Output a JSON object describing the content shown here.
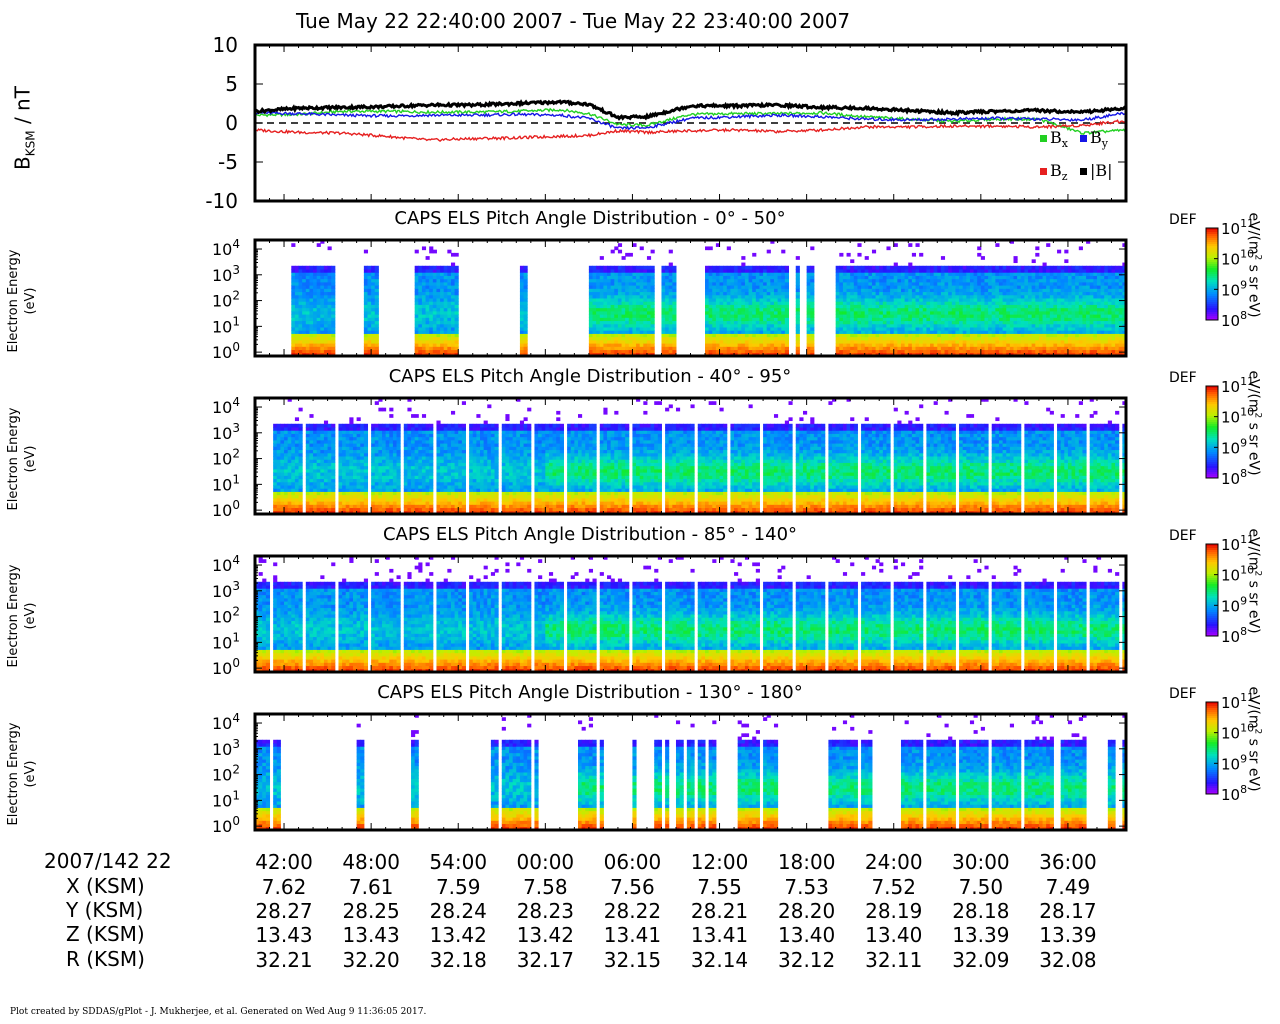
{
  "header": {
    "time_range": "Tue May 22 22:40:00 2007 - Tue May 22 23:40:00 2007"
  },
  "chart_data": [
    {
      "type": "line",
      "ylabel": "B",
      "ylabel_sub": "KSM",
      "ylabel_unit": " / nT",
      "ylim": [
        -10,
        10
      ],
      "yticks": [
        "10",
        "5",
        "0",
        "-5",
        "-10"
      ],
      "xlim_minutes": [
        0,
        60
      ],
      "zero_line": "dashed",
      "legend": {
        "placement": "bottom-right",
        "items": [
          {
            "label": "B",
            "sub": "x",
            "color": "#22d022"
          },
          {
            "label": "B",
            "sub": "y",
            "color": "#1515e6"
          },
          {
            "label": "B",
            "sub": "z",
            "color": "#e62020"
          },
          {
            "label": "|B|",
            "sub": "",
            "color": "#000000"
          }
        ]
      },
      "x": [
        0,
        3,
        6,
        9,
        12,
        15,
        18,
        21,
        23,
        25,
        27,
        30,
        33,
        36,
        39,
        42,
        45,
        48,
        51,
        54,
        57,
        60
      ],
      "series": [
        {
          "name": "Bx",
          "color": "#22d022",
          "values": [
            1.0,
            1.1,
            1.5,
            1.5,
            1.4,
            1.4,
            1.5,
            1.7,
            1.2,
            -0.2,
            -0.3,
            1.1,
            1.2,
            1.2,
            1.3,
            0.8,
            0.5,
            0.2,
            0.5,
            0.5,
            -1.3,
            -0.9
          ]
        },
        {
          "name": "By",
          "color": "#1515e6",
          "values": [
            1.3,
            1.2,
            1.0,
            0.9,
            1.0,
            1.0,
            1.1,
            1.0,
            0.6,
            -0.7,
            -0.6,
            0.6,
            0.8,
            1.0,
            0.8,
            0.5,
            0.4,
            0.5,
            0.6,
            0.5,
            0.4,
            1.3
          ]
        },
        {
          "name": "Bz",
          "color": "#e62020",
          "values": [
            -0.9,
            -1.2,
            -1.3,
            -1.7,
            -2.2,
            -2.0,
            -1.9,
            -1.7,
            -1.6,
            -1.0,
            -1.2,
            -1.0,
            -0.9,
            -1.1,
            -0.9,
            -0.5,
            -0.5,
            -0.4,
            -0.4,
            -0.5,
            -0.3,
            0.3
          ]
        },
        {
          "name": "|B|",
          "color": "#000000",
          "values": [
            1.5,
            1.9,
            2.0,
            2.1,
            2.3,
            2.3,
            2.5,
            2.7,
            2.4,
            0.7,
            0.8,
            2.2,
            2.2,
            2.3,
            2.0,
            1.9,
            1.6,
            1.3,
            1.5,
            1.6,
            1.4,
            1.9
          ]
        }
      ]
    },
    {
      "type": "heatmap",
      "title": "CAPS ELS Pitch Angle Distribution - 0° - 50°",
      "ylabel": "Electron Energy",
      "ylabel_unit": "(eV)",
      "yticks": [
        {
          "base": "10",
          "exp": "4"
        },
        {
          "base": "10",
          "exp": "3"
        },
        {
          "base": "10",
          "exp": "2"
        },
        {
          "base": "10",
          "exp": "1"
        },
        {
          "base": "10",
          "exp": "0"
        }
      ],
      "coverage_minutes": [
        [
          2.4,
          5.4
        ],
        [
          7.4,
          8.6
        ],
        [
          11.0,
          14.0
        ],
        [
          18.2,
          18.8
        ],
        [
          23.0,
          27.6
        ],
        [
          28.0,
          28.9
        ],
        [
          31.0,
          36.7
        ],
        [
          37.2,
          37.6
        ],
        [
          38.0,
          38.4
        ],
        [
          40.0,
          60.0
        ]
      ],
      "colorbar": {
        "label": "DEF",
        "unit": "eV/(m",
        "unit_sup": "2",
        "unit_rest": " s sr eV)",
        "ticks": [
          {
            "base": "10",
            "exp": "11"
          },
          {
            "base": "10",
            "exp": "10"
          },
          {
            "base": "10",
            "exp": "9"
          },
          {
            "base": "10",
            "exp": "8"
          }
        ]
      }
    },
    {
      "type": "heatmap",
      "title": "CAPS ELS Pitch Angle Distribution - 40° - 95°",
      "ylabel": "Electron Energy",
      "ylabel_unit": "(eV)",
      "yticks": [
        {
          "base": "10",
          "exp": "4"
        },
        {
          "base": "10",
          "exp": "3"
        },
        {
          "base": "10",
          "exp": "2"
        },
        {
          "base": "10",
          "exp": "1"
        },
        {
          "base": "10",
          "exp": "0"
        }
      ],
      "coverage_minutes": [
        [
          1.3,
          60.0
        ]
      ],
      "colorbar": {
        "label": "DEF",
        "unit": "eV/(m",
        "unit_sup": "2",
        "unit_rest": " s sr eV)",
        "ticks": [
          {
            "base": "10",
            "exp": "11"
          },
          {
            "base": "10",
            "exp": "10"
          },
          {
            "base": "10",
            "exp": "9"
          },
          {
            "base": "10",
            "exp": "8"
          }
        ]
      }
    },
    {
      "type": "heatmap",
      "title": "CAPS ELS Pitch Angle Distribution - 85° - 140°",
      "ylabel": "Electron Energy",
      "ylabel_unit": "(eV)",
      "yticks": [
        {
          "base": "10",
          "exp": "4"
        },
        {
          "base": "10",
          "exp": "3"
        },
        {
          "base": "10",
          "exp": "2"
        },
        {
          "base": "10",
          "exp": "1"
        },
        {
          "base": "10",
          "exp": "0"
        }
      ],
      "coverage_minutes": [
        [
          0.0,
          60.0
        ]
      ],
      "colorbar": {
        "label": "DEF",
        "unit": "eV/(m",
        "unit_sup": "2",
        "unit_rest": " s sr eV)",
        "ticks": [
          {
            "base": "10",
            "exp": "11"
          },
          {
            "base": "10",
            "exp": "10"
          },
          {
            "base": "10",
            "exp": "9"
          },
          {
            "base": "10",
            "exp": "8"
          }
        ]
      }
    },
    {
      "type": "heatmap",
      "title": "CAPS ELS Pitch Angle Distribution - 130° - 180°",
      "ylabel": "Electron Energy",
      "ylabel_unit": "(eV)",
      "yticks": [
        {
          "base": "10",
          "exp": "4"
        },
        {
          "base": "10",
          "exp": "3"
        },
        {
          "base": "10",
          "exp": "2"
        },
        {
          "base": "10",
          "exp": "1"
        },
        {
          "base": "10",
          "exp": "0"
        }
      ],
      "coverage_minutes": [
        [
          0.0,
          1.7
        ],
        [
          7.1,
          7.6
        ],
        [
          10.7,
          11.2
        ],
        [
          16.3,
          19.5
        ],
        [
          22.3,
          24.0
        ],
        [
          25.8,
          26.3
        ],
        [
          27.6,
          28.6
        ],
        [
          28.9,
          29.5
        ],
        [
          29.8,
          31.0
        ],
        [
          31.3,
          31.7
        ],
        [
          33.2,
          36.1
        ],
        [
          39.6,
          42.4
        ],
        [
          44.5,
          54.9
        ],
        [
          55.6,
          57.5
        ],
        [
          58.8,
          59.3
        ],
        [
          59.6,
          60.0
        ]
      ],
      "colorbar": {
        "label": "DEF",
        "unit": "eV/(m",
        "unit_sup": "2",
        "unit_rest": " s sr eV)",
        "ticks": [
          {
            "base": "10",
            "exp": "11"
          },
          {
            "base": "10",
            "exp": "10"
          },
          {
            "base": "10",
            "exp": "9"
          },
          {
            "base": "10",
            "exp": "8"
          }
        ]
      }
    }
  ],
  "ephemeris": {
    "date_label": "2007/142 22",
    "times": [
      "42:00",
      "48:00",
      "54:00",
      "00:00",
      "06:00",
      "12:00",
      "18:00",
      "24:00",
      "30:00",
      "36:00"
    ],
    "time_minutes": [
      2,
      8,
      14,
      20,
      26,
      32,
      38,
      44,
      50,
      56
    ],
    "rows": [
      {
        "label": "X (KSM)",
        "values": [
          "7.62",
          "7.61",
          "7.59",
          "7.58",
          "7.56",
          "7.55",
          "7.53",
          "7.52",
          "7.50",
          "7.49"
        ]
      },
      {
        "label": "Y (KSM)",
        "values": [
          "28.27",
          "28.25",
          "28.24",
          "28.23",
          "28.22",
          "28.21",
          "28.20",
          "28.19",
          "28.18",
          "28.17"
        ]
      },
      {
        "label": "Z (KSM)",
        "values": [
          "13.43",
          "13.43",
          "13.42",
          "13.42",
          "13.41",
          "13.41",
          "13.40",
          "13.40",
          "13.39",
          "13.39"
        ]
      },
      {
        "label": "R (KSM)",
        "values": [
          "32.21",
          "32.20",
          "32.18",
          "32.17",
          "32.15",
          "32.14",
          "32.12",
          "32.11",
          "32.09",
          "32.08"
        ]
      }
    ]
  },
  "footer": {
    "credit": "Plot created by SDDAS/gPlot - J. Mukherjee, et al.  Generated on Wed Aug 9 11:36:05 2017."
  }
}
